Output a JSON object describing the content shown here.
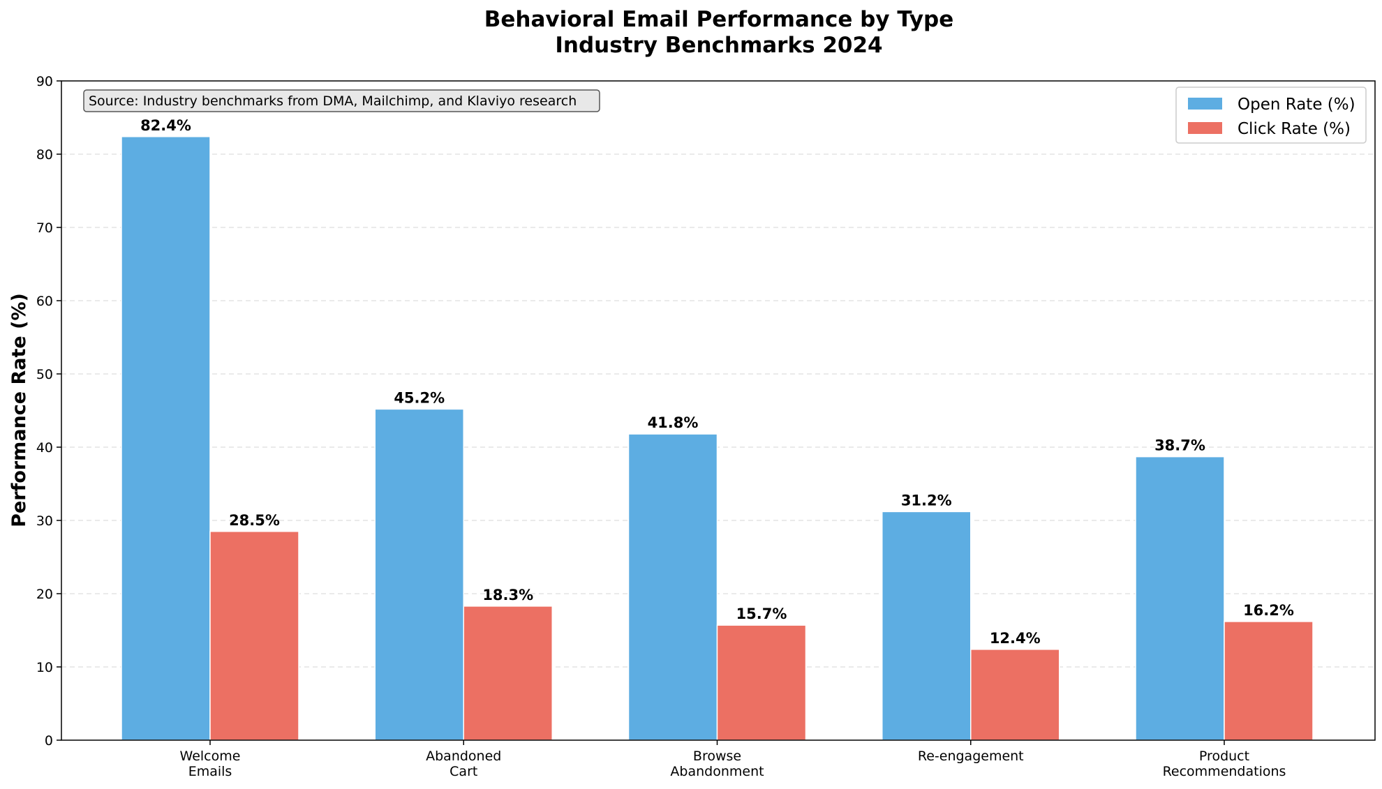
{
  "chart_data": {
    "type": "bar",
    "title": "Behavioral Email Performance by Type",
    "subtitle": "Industry Benchmarks 2024",
    "xlabel": "",
    "ylabel": "Performance Rate (%)",
    "ylim": [
      0,
      90
    ],
    "yticks": [
      "0",
      "10",
      "20",
      "30",
      "40",
      "50",
      "60",
      "70",
      "80",
      "90"
    ],
    "categories": [
      [
        "Welcome",
        "Emails"
      ],
      [
        "Abandoned",
        "Cart"
      ],
      [
        "Browse",
        "Abandonment"
      ],
      [
        "Re-engagement"
      ],
      [
        "Product",
        "Recommendations"
      ]
    ],
    "series": [
      {
        "name": "Open Rate (%)",
        "color": "#5DADE2",
        "values": [
          82.4,
          45.2,
          41.8,
          31.2,
          38.7
        ],
        "labels": [
          "82.4%",
          "45.2%",
          "41.8%",
          "31.2%",
          "38.7%"
        ]
      },
      {
        "name": "Click Rate (%)",
        "color": "#EC7063",
        "values": [
          28.5,
          18.3,
          15.7,
          12.4,
          16.2
        ],
        "labels": [
          "28.5%",
          "18.3%",
          "15.7%",
          "12.4%",
          "16.2%"
        ]
      }
    ],
    "grid": "horizontal-dashed",
    "legend": "top-right",
    "annotation": "Source: Industry benchmarks from DMA, Mailchimp, and Klaviyo research"
  }
}
